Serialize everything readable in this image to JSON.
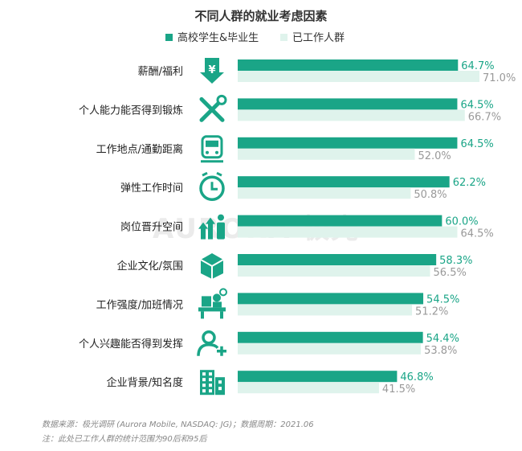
{
  "title": "不同人群的就业考虑因素",
  "watermark": "AURORA 极光",
  "footnotes": {
    "source": "数据来源：极光调研 (Aurora Mobile, NASDAQ: JG)；数据周期：2021.06",
    "note": "注：此处已工作人群的统计范围为90后和95后"
  },
  "colors": {
    "series_a": "#1aa587",
    "series_b": "#dff3ec",
    "icon": "#1aa587"
  },
  "chart_data": {
    "type": "bar",
    "orientation": "horizontal",
    "categories": [
      "薪酬/福利",
      "个人能力能否得到锻炼",
      "工作地点/通勤距离",
      "弹性工作时间",
      "岗位晋升空间",
      "企业文化/氛围",
      "工作强度/加班情况",
      "个人兴趣能否得到发挥",
      "企业背景/知名度"
    ],
    "icons": [
      "yuan-down-arrow-icon",
      "tools-icon",
      "train-icon",
      "clock-icon",
      "promotion-icon",
      "box-icon",
      "workload-icon",
      "add-user-icon",
      "building-icon"
    ],
    "series": [
      {
        "name": "高校学生&毕业生",
        "values": [
          64.7,
          64.5,
          64.5,
          62.2,
          60.0,
          58.3,
          54.5,
          54.4,
          46.8
        ],
        "labels": [
          "64.7%",
          "64.5%",
          "64.5%",
          "62.2%",
          "60.0%",
          "58.3%",
          "54.5%",
          "54.4%",
          "46.8%"
        ]
      },
      {
        "name": "已工作人群",
        "values": [
          71.0,
          66.7,
          52.0,
          50.8,
          64.5,
          56.5,
          51.2,
          53.8,
          41.5
        ],
        "labels": [
          "71.0%",
          "66.7%",
          "52.0%",
          "50.8%",
          "64.5%",
          "56.5%",
          "51.2%",
          "53.8%",
          "41.5%"
        ]
      }
    ],
    "xlim": [
      0,
      100
    ],
    "legend_position": "top-center",
    "grid": false
  }
}
